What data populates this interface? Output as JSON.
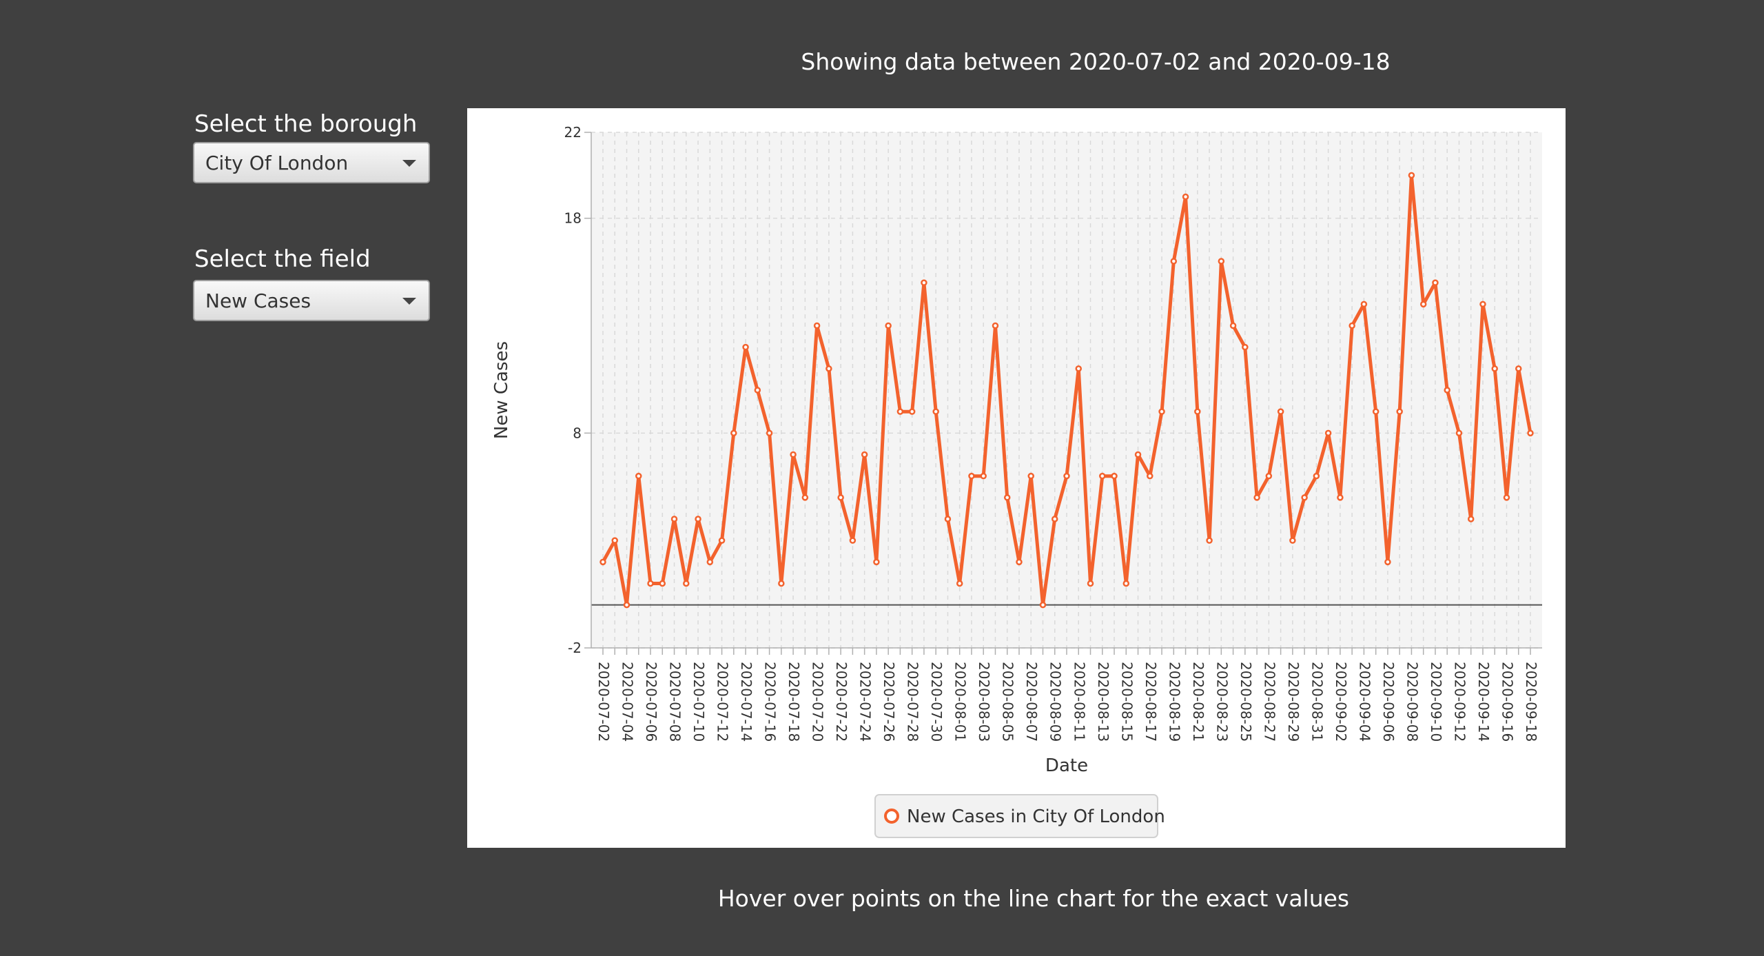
{
  "header": {
    "range_text": "Showing data between 2020-07-02 and 2020-09-18"
  },
  "controls": {
    "borough_label": "Select the borough",
    "borough_value": "City Of London",
    "field_label": "Select the field",
    "field_value": "New Cases"
  },
  "footer": {
    "hint_text": "Hover over points on the line chart for the exact values"
  },
  "colors": {
    "series": "#f3622d",
    "background": "#404040",
    "plot_bg": "#f4f4f4"
  },
  "chart_data": {
    "type": "line",
    "xlabel": "Date",
    "ylabel": "New Cases",
    "ylim": [
      -2,
      22
    ],
    "yticks": [
      -2,
      8,
      18,
      22
    ],
    "grid": true,
    "legend_position": "bottom",
    "series": [
      {
        "name": "New Cases in City Of London",
        "color": "#f3622d",
        "x": [
          "2020-07-02",
          "2020-07-03",
          "2020-07-04",
          "2020-07-05",
          "2020-07-06",
          "2020-07-07",
          "2020-07-08",
          "2020-07-09",
          "2020-07-10",
          "2020-07-11",
          "2020-07-12",
          "2020-07-13",
          "2020-07-14",
          "2020-07-15",
          "2020-07-16",
          "2020-07-17",
          "2020-07-18",
          "2020-07-19",
          "2020-07-20",
          "2020-07-21",
          "2020-07-22",
          "2020-07-23",
          "2020-07-24",
          "2020-07-25",
          "2020-07-26",
          "2020-07-27",
          "2020-07-28",
          "2020-07-29",
          "2020-07-30",
          "2020-07-31",
          "2020-08-01",
          "2020-08-02",
          "2020-08-03",
          "2020-08-04",
          "2020-08-05",
          "2020-08-06",
          "2020-08-07",
          "2020-08-08",
          "2020-08-09",
          "2020-08-10",
          "2020-08-11",
          "2020-08-12",
          "2020-08-13",
          "2020-08-14",
          "2020-08-15",
          "2020-08-16",
          "2020-08-17",
          "2020-08-18",
          "2020-08-19",
          "2020-08-20",
          "2020-08-21",
          "2020-08-22",
          "2020-08-23",
          "2020-08-24",
          "2020-08-25",
          "2020-08-26",
          "2020-08-27",
          "2020-08-28",
          "2020-08-29",
          "2020-08-30",
          "2020-08-31",
          "2020-09-01",
          "2020-09-02",
          "2020-09-03",
          "2020-09-04",
          "2020-09-05",
          "2020-09-06",
          "2020-09-07",
          "2020-09-08",
          "2020-09-09",
          "2020-09-10",
          "2020-09-11",
          "2020-09-12",
          "2020-09-13",
          "2020-09-14",
          "2020-09-15",
          "2020-09-16",
          "2020-09-17",
          "2020-09-18"
        ],
        "y": [
          2,
          3,
          0,
          6,
          1,
          1,
          4,
          1,
          4,
          2,
          3,
          8,
          12,
          10,
          8,
          1,
          7,
          5,
          13,
          11,
          5,
          3,
          7,
          2,
          13,
          9,
          9,
          15,
          9,
          4,
          1,
          6,
          6,
          13,
          5,
          2,
          6,
          0,
          4,
          6,
          11,
          1,
          6,
          6,
          1,
          7,
          6,
          9,
          16,
          19,
          9,
          3,
          16,
          13,
          12,
          5,
          6,
          9,
          3,
          5,
          6,
          8,
          5,
          13,
          14,
          9,
          2,
          9,
          20,
          14,
          15,
          10,
          8,
          4,
          14,
          11,
          5,
          11,
          8
        ]
      }
    ]
  }
}
